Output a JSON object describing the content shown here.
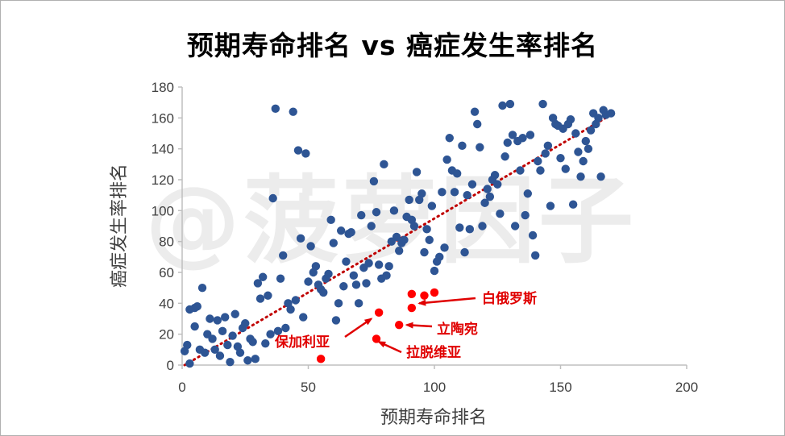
{
  "chart_data": {
    "type": "scatter",
    "title": "预期寿命排名 vs 癌症发生率排名",
    "xlabel": "预期寿命排名",
    "ylabel": "癌症发生率排名",
    "xlim": [
      0,
      200
    ],
    "ylim": [
      0,
      180
    ],
    "xticks": [
      0,
      50,
      100,
      150,
      200
    ],
    "yticks": [
      0,
      20,
      40,
      60,
      80,
      100,
      120,
      140,
      160,
      180
    ],
    "grid": false,
    "watermark": "@菠萝因子",
    "colors": {
      "points": "#2e5594",
      "highlight": "#ff0000",
      "trendline": "#c00000"
    },
    "trendline": {
      "style": "dotted",
      "from": [
        1,
        0
      ],
      "to": [
        171,
        163
      ]
    },
    "series": [
      {
        "points": [
          [
            1,
            9
          ],
          [
            2,
            13
          ],
          [
            3,
            36
          ],
          [
            3,
            1
          ],
          [
            5,
            37
          ],
          [
            5,
            25
          ],
          [
            6,
            38
          ],
          [
            7,
            10
          ],
          [
            8,
            50
          ],
          [
            9,
            8
          ],
          [
            10,
            20
          ],
          [
            11,
            30
          ],
          [
            12,
            17
          ],
          [
            13,
            10
          ],
          [
            14,
            29
          ],
          [
            15,
            6
          ],
          [
            16,
            22
          ],
          [
            17,
            31
          ],
          [
            18,
            13
          ],
          [
            19,
            2
          ],
          [
            20,
            19
          ],
          [
            21,
            33
          ],
          [
            22,
            12
          ],
          [
            23,
            8
          ],
          [
            24,
            24
          ],
          [
            25,
            27
          ],
          [
            26,
            3
          ],
          [
            27,
            17
          ],
          [
            28,
            15
          ],
          [
            29,
            4
          ],
          [
            30,
            53
          ],
          [
            31,
            43
          ],
          [
            32,
            57
          ],
          [
            33,
            14
          ],
          [
            34,
            45
          ],
          [
            35,
            20
          ],
          [
            36,
            108
          ],
          [
            37,
            166
          ],
          [
            38,
            22
          ],
          [
            39,
            56
          ],
          [
            40,
            71
          ],
          [
            41,
            24
          ],
          [
            42,
            40
          ],
          [
            43,
            36
          ],
          [
            44,
            164
          ],
          [
            45,
            42
          ],
          [
            46,
            139
          ],
          [
            47,
            82
          ],
          [
            48,
            31
          ],
          [
            49,
            137
          ],
          [
            50,
            54
          ],
          [
            51,
            77
          ],
          [
            52,
            60
          ],
          [
            53,
            64
          ],
          [
            54,
            52
          ],
          [
            55,
            49
          ],
          [
            56,
            47
          ],
          [
            57,
            56
          ],
          [
            58,
            59
          ],
          [
            59,
            94
          ],
          [
            60,
            79
          ],
          [
            61,
            29
          ],
          [
            62,
            40
          ],
          [
            63,
            87
          ],
          [
            64,
            51
          ],
          [
            65,
            67
          ],
          [
            66,
            85
          ],
          [
            67,
            86
          ],
          [
            68,
            58
          ],
          [
            69,
            52
          ],
          [
            70,
            40
          ],
          [
            71,
            97
          ],
          [
            72,
            63
          ],
          [
            73,
            53
          ],
          [
            74,
            66
          ],
          [
            75,
            90
          ],
          [
            76,
            119
          ],
          [
            77,
            99
          ],
          [
            78,
            65
          ],
          [
            79,
            56
          ],
          [
            80,
            130
          ],
          [
            81,
            58
          ],
          [
            82,
            64
          ],
          [
            83,
            80
          ],
          [
            84,
            100
          ],
          [
            85,
            83
          ],
          [
            86,
            74
          ],
          [
            87,
            79
          ],
          [
            88,
            81
          ],
          [
            89,
            96
          ],
          [
            90,
            107
          ],
          [
            91,
            94
          ],
          [
            92,
            90
          ],
          [
            93,
            125
          ],
          [
            94,
            107
          ],
          [
            95,
            111
          ],
          [
            96,
            73
          ],
          [
            97,
            88
          ],
          [
            98,
            81
          ],
          [
            99,
            103
          ],
          [
            100,
            61
          ],
          [
            101,
            67
          ],
          [
            102,
            70
          ],
          [
            103,
            112
          ],
          [
            104,
            76
          ],
          [
            105,
            133
          ],
          [
            106,
            147
          ],
          [
            107,
            126
          ],
          [
            108,
            112
          ],
          [
            109,
            124
          ],
          [
            110,
            89
          ],
          [
            111,
            142
          ],
          [
            112,
            73
          ],
          [
            113,
            110
          ],
          [
            114,
            88
          ],
          [
            115,
            117
          ],
          [
            116,
            164
          ],
          [
            117,
            156
          ],
          [
            118,
            141
          ],
          [
            119,
            90
          ],
          [
            120,
            105
          ],
          [
            121,
            114
          ],
          [
            122,
            109
          ],
          [
            123,
            120
          ],
          [
            124,
            123
          ],
          [
            125,
            117
          ],
          [
            126,
            98
          ],
          [
            127,
            168
          ],
          [
            128,
            135
          ],
          [
            129,
            144
          ],
          [
            130,
            169
          ],
          [
            131,
            149
          ],
          [
            132,
            90
          ],
          [
            133,
            145
          ],
          [
            134,
            126
          ],
          [
            135,
            147
          ],
          [
            136,
            97
          ],
          [
            137,
            111
          ],
          [
            138,
            149
          ],
          [
            139,
            84
          ],
          [
            140,
            71
          ],
          [
            141,
            132
          ],
          [
            142,
            126
          ],
          [
            143,
            169
          ],
          [
            144,
            137
          ],
          [
            145,
            142
          ],
          [
            146,
            103
          ],
          [
            147,
            160
          ],
          [
            148,
            156
          ],
          [
            149,
            155
          ],
          [
            150,
            134
          ],
          [
            151,
            153
          ],
          [
            152,
            127
          ],
          [
            153,
            156
          ],
          [
            154,
            159
          ],
          [
            155,
            104
          ],
          [
            156,
            150
          ],
          [
            157,
            138
          ],
          [
            158,
            122
          ],
          [
            159,
            132
          ],
          [
            160,
            145
          ],
          [
            161,
            140
          ],
          [
            162,
            152
          ],
          [
            163,
            163
          ],
          [
            164,
            156
          ],
          [
            165,
            160
          ],
          [
            166,
            122
          ],
          [
            167,
            165
          ],
          [
            168,
            162
          ],
          [
            170,
            163
          ]
        ]
      },
      {
        "name": "highlighted",
        "points": [
          [
            55,
            4
          ],
          [
            77,
            17
          ],
          [
            78,
            34
          ],
          [
            86,
            26
          ],
          [
            91,
            37
          ],
          [
            91,
            46
          ],
          [
            96,
            45
          ],
          [
            100,
            47
          ]
        ]
      }
    ],
    "annotations": [
      {
        "text": "白俄罗斯",
        "target": [
          94,
          40
        ]
      },
      {
        "text": "立陶宛",
        "target": [
          89,
          26
        ]
      },
      {
        "text": "保加利亚",
        "target": [
          75,
          30
        ]
      },
      {
        "text": "拉脱维亚",
        "target": [
          78,
          15
        ]
      }
    ]
  }
}
